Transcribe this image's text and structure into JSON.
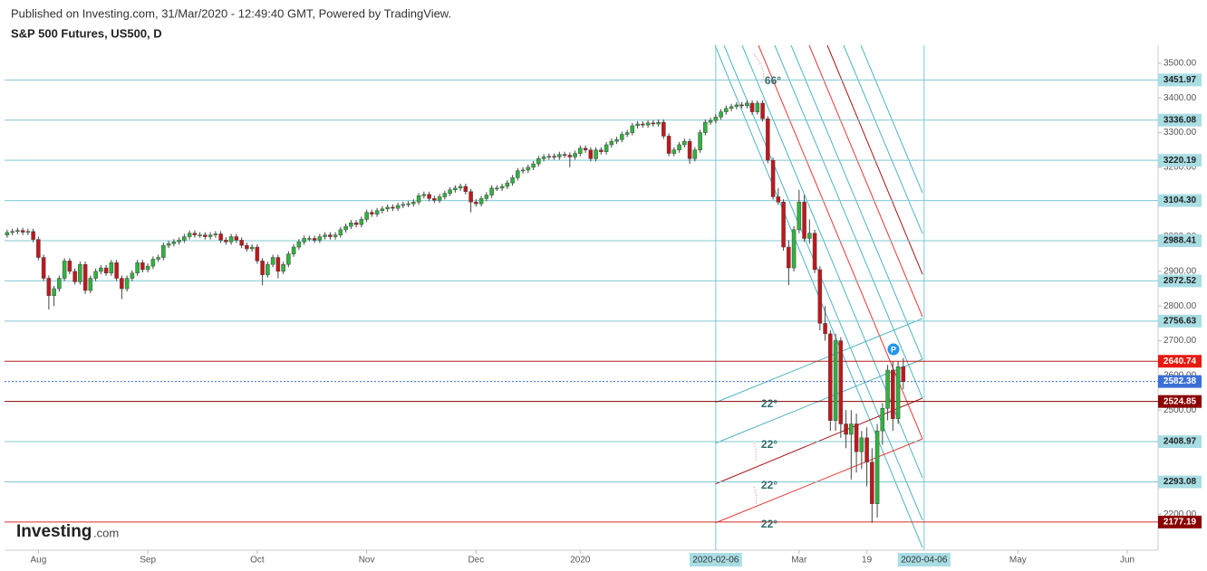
{
  "chart_data": {
    "type": "candlestick",
    "subtitle": "Published on Investing.com, 31/Mar/2020 - 12:49:40 GMT, Powered by TradingView.",
    "title": "S&P 500 Futures, US500, D",
    "logo": {
      "name": "Investing",
      "suffix": ".com"
    },
    "up_color": "#2fb43c",
    "down_color": "#c3161c",
    "candles": [
      [
        3005,
        3020,
        2997,
        3012
      ],
      [
        3012,
        3023,
        3004,
        3015
      ],
      [
        3015,
        3026,
        3007,
        3018
      ],
      [
        3018,
        3026,
        3005,
        3013
      ],
      [
        3013,
        3023,
        3005,
        3015
      ],
      [
        3015,
        3023,
        2984,
        2992
      ],
      [
        2992,
        3000,
        2932,
        2940
      ],
      [
        2940,
        2948,
        2872,
        2880
      ],
      [
        2880,
        2888,
        2790,
        2830
      ],
      [
        2830,
        2858,
        2800,
        2850
      ],
      [
        2850,
        2888,
        2842,
        2880
      ],
      [
        2880,
        2938,
        2872,
        2930
      ],
      [
        2930,
        2938,
        2892,
        2900
      ],
      [
        2900,
        2908,
        2862,
        2870
      ],
      [
        2870,
        2928,
        2862,
        2920
      ],
      [
        2920,
        2928,
        2835,
        2845
      ],
      [
        2845,
        2888,
        2837,
        2880
      ],
      [
        2880,
        2908,
        2872,
        2900
      ],
      [
        2900,
        2918,
        2892,
        2910
      ],
      [
        2910,
        2918,
        2887,
        2895
      ],
      [
        2895,
        2933,
        2887,
        2925
      ],
      [
        2925,
        2933,
        2872,
        2880
      ],
      [
        2880,
        2888,
        2820,
        2850
      ],
      [
        2850,
        2888,
        2842,
        2880
      ],
      [
        2880,
        2903,
        2872,
        2895
      ],
      [
        2895,
        2933,
        2887,
        2925
      ],
      [
        2925,
        2933,
        2897,
        2905
      ],
      [
        2905,
        2923,
        2897,
        2915
      ],
      [
        2915,
        2943,
        2907,
        2935
      ],
      [
        2935,
        2948,
        2927,
        2940
      ],
      [
        2940,
        2983,
        2932,
        2975
      ],
      [
        2975,
        2988,
        2967,
        2980
      ],
      [
        2980,
        2993,
        2972,
        2985
      ],
      [
        2985,
        2998,
        2977,
        2990
      ],
      [
        2990,
        3008,
        2982,
        3000
      ],
      [
        3000,
        3018,
        2992,
        3010
      ],
      [
        3010,
        3018,
        2997,
        3005
      ],
      [
        3005,
        3013,
        2997,
        3005
      ],
      [
        3005,
        3013,
        2992,
        3000
      ],
      [
        3000,
        3013,
        2992,
        3005
      ],
      [
        3005,
        3016,
        2997,
        3008
      ],
      [
        3008,
        3016,
        2982,
        2990
      ],
      [
        2990,
        2998,
        2977,
        2985
      ],
      [
        2985,
        3008,
        2977,
        3000
      ],
      [
        3000,
        3008,
        2982,
        2990
      ],
      [
        2990,
        2998,
        2967,
        2975
      ],
      [
        2975,
        2983,
        2957,
        2965
      ],
      [
        2965,
        2978,
        2957,
        2970
      ],
      [
        2970,
        2978,
        2922,
        2930
      ],
      [
        2930,
        2938,
        2860,
        2890
      ],
      [
        2890,
        2928,
        2882,
        2920
      ],
      [
        2920,
        2948,
        2912,
        2940
      ],
      [
        2940,
        2948,
        2880,
        2900
      ],
      [
        2900,
        2928,
        2892,
        2920
      ],
      [
        2920,
        2958,
        2912,
        2950
      ],
      [
        2950,
        2978,
        2942,
        2970
      ],
      [
        2970,
        2993,
        2962,
        2985
      ],
      [
        2985,
        3003,
        2977,
        2995
      ],
      [
        2995,
        3003,
        2987,
        2995
      ],
      [
        2995,
        3003,
        2982,
        2990
      ],
      [
        2990,
        3008,
        2982,
        3000
      ],
      [
        3000,
        3013,
        2992,
        3005
      ],
      [
        3005,
        3013,
        2992,
        3000
      ],
      [
        3000,
        3013,
        2992,
        3005
      ],
      [
        3005,
        3028,
        2997,
        3020
      ],
      [
        3020,
        3038,
        3012,
        3030
      ],
      [
        3030,
        3048,
        3022,
        3040
      ],
      [
        3040,
        3048,
        3027,
        3035
      ],
      [
        3035,
        3058,
        3027,
        3050
      ],
      [
        3050,
        3078,
        3042,
        3070
      ],
      [
        3070,
        3078,
        3057,
        3065
      ],
      [
        3065,
        3083,
        3057,
        3075
      ],
      [
        3075,
        3088,
        3067,
        3080
      ],
      [
        3080,
        3093,
        3072,
        3085
      ],
      [
        3085,
        3093,
        3074,
        3082
      ],
      [
        3082,
        3098,
        3074,
        3090
      ],
      [
        3090,
        3101,
        3082,
        3093
      ],
      [
        3093,
        3103,
        3085,
        3095
      ],
      [
        3095,
        3108,
        3087,
        3100
      ],
      [
        3100,
        3126,
        3092,
        3118
      ],
      [
        3118,
        3130,
        3110,
        3122
      ],
      [
        3122,
        3130,
        3102,
        3110
      ],
      [
        3110,
        3118,
        3097,
        3105
      ],
      [
        3105,
        3123,
        3097,
        3115
      ],
      [
        3115,
        3133,
        3107,
        3125
      ],
      [
        3125,
        3143,
        3117,
        3135
      ],
      [
        3135,
        3148,
        3127,
        3140
      ],
      [
        3140,
        3153,
        3132,
        3145
      ],
      [
        3145,
        3153,
        3122,
        3130
      ],
      [
        3130,
        3138,
        3070,
        3100
      ],
      [
        3100,
        3108,
        3087,
        3095
      ],
      [
        3095,
        3118,
        3087,
        3110
      ],
      [
        3110,
        3128,
        3102,
        3120
      ],
      [
        3120,
        3148,
        3112,
        3140
      ],
      [
        3140,
        3148,
        3132,
        3140
      ],
      [
        3140,
        3153,
        3132,
        3145
      ],
      [
        3145,
        3163,
        3137,
        3155
      ],
      [
        3155,
        3178,
        3147,
        3170
      ],
      [
        3170,
        3198,
        3162,
        3190
      ],
      [
        3190,
        3200,
        3182,
        3192
      ],
      [
        3192,
        3208,
        3184,
        3200
      ],
      [
        3200,
        3218,
        3192,
        3210
      ],
      [
        3210,
        3233,
        3202,
        3225
      ],
      [
        3225,
        3238,
        3217,
        3230
      ],
      [
        3230,
        3240,
        3222,
        3232
      ],
      [
        3232,
        3240,
        3222,
        3230
      ],
      [
        3230,
        3245,
        3222,
        3237
      ],
      [
        3237,
        3245,
        3227,
        3235
      ],
      [
        3235,
        3243,
        3200,
        3230
      ],
      [
        3230,
        3248,
        3222,
        3240
      ],
      [
        3240,
        3263,
        3232,
        3255
      ],
      [
        3255,
        3263,
        3242,
        3250
      ],
      [
        3250,
        3258,
        3217,
        3225
      ],
      [
        3225,
        3258,
        3217,
        3250
      ],
      [
        3250,
        3258,
        3237,
        3245
      ],
      [
        3245,
        3273,
        3237,
        3265
      ],
      [
        3265,
        3283,
        3257,
        3275
      ],
      [
        3275,
        3288,
        3267,
        3280
      ],
      [
        3280,
        3303,
        3272,
        3295
      ],
      [
        3295,
        3308,
        3287,
        3300
      ],
      [
        3300,
        3328,
        3292,
        3320
      ],
      [
        3320,
        3333,
        3312,
        3325
      ],
      [
        3325,
        3333,
        3314,
        3322
      ],
      [
        3322,
        3336,
        3314,
        3328
      ],
      [
        3328,
        3336,
        3317,
        3325
      ],
      [
        3325,
        3338,
        3317,
        3330
      ],
      [
        3330,
        3338,
        3282,
        3290
      ],
      [
        3290,
        3298,
        3232,
        3240
      ],
      [
        3240,
        3258,
        3232,
        3250
      ],
      [
        3250,
        3273,
        3242,
        3265
      ],
      [
        3265,
        3283,
        3257,
        3275
      ],
      [
        3275,
        3283,
        3210,
        3225
      ],
      [
        3225,
        3258,
        3217,
        3250
      ],
      [
        3250,
        3308,
        3242,
        3300
      ],
      [
        3300,
        3338,
        3292,
        3330
      ],
      [
        3330,
        3343,
        3322,
        3335
      ],
      [
        3335,
        3353,
        3327,
        3345
      ],
      [
        3345,
        3368,
        3337,
        3360
      ],
      [
        3360,
        3378,
        3352,
        3370
      ],
      [
        3370,
        3383,
        3362,
        3375
      ],
      [
        3375,
        3388,
        3367,
        3380
      ],
      [
        3380,
        3388,
        3370,
        3378
      ],
      [
        3378,
        3393,
        3370,
        3385
      ],
      [
        3385,
        3393,
        3352,
        3360
      ],
      [
        3360,
        3393,
        3352,
        3385
      ],
      [
        3385,
        3393,
        3332,
        3340
      ],
      [
        3340,
        3348,
        3212,
        3220
      ],
      [
        3220,
        3228,
        3107,
        3115
      ],
      [
        3115,
        3140,
        3092,
        3100
      ],
      [
        3100,
        3108,
        2960,
        2970
      ],
      [
        2970,
        2990,
        2860,
        2910
      ],
      [
        2910,
        3030,
        2900,
        3020
      ],
      [
        3020,
        3135,
        3010,
        3100
      ],
      [
        3100,
        3120,
        2985,
        2995
      ],
      [
        2995,
        3050,
        2980,
        3010
      ],
      [
        3010,
        3020,
        2895,
        2905
      ],
      [
        2905,
        2915,
        2730,
        2750
      ],
      [
        2750,
        2800,
        2700,
        2720
      ],
      [
        2720,
        2730,
        2440,
        2470
      ],
      [
        2470,
        2720,
        2440,
        2700
      ],
      [
        2700,
        2710,
        2420,
        2460
      ],
      [
        2460,
        2500,
        2390,
        2430
      ],
      [
        2430,
        2500,
        2300,
        2460
      ],
      [
        2460,
        2490,
        2320,
        2380
      ],
      [
        2380,
        2440,
        2330,
        2420
      ],
      [
        2420,
        2450,
        2280,
        2350
      ],
      [
        2350,
        2390,
        2175,
        2230
      ],
      [
        2230,
        2460,
        2190,
        2440
      ],
      [
        2440,
        2520,
        2400,
        2505
      ],
      [
        2505,
        2630,
        2470,
        2615
      ],
      [
        2615,
        2640,
        2440,
        2475
      ],
      [
        2475,
        2640,
        2460,
        2625
      ],
      [
        2625,
        2650,
        2560,
        2582
      ]
    ],
    "ylim": [
      2096,
      3552
    ],
    "yticks": [
      {
        "value": 2200,
        "label": "2200.00"
      },
      {
        "value": 2300,
        "label": "2300.00"
      },
      {
        "value": 2400,
        "label": "2400.00"
      },
      {
        "value": 2500,
        "label": "2500.00"
      },
      {
        "value": 2600,
        "label": "2600.00"
      },
      {
        "value": 2700,
        "label": "2700.00"
      },
      {
        "value": 2800,
        "label": "2800.00"
      },
      {
        "value": 2900,
        "label": "2900.00"
      },
      {
        "value": 3000,
        "label": "3000.00"
      },
      {
        "value": 3100,
        "label": "3100.00"
      },
      {
        "value": 3200,
        "label": "3200.00"
      },
      {
        "value": 3300,
        "label": "3300.00"
      },
      {
        "value": 3400,
        "label": "3400.00"
      },
      {
        "value": 3500,
        "label": "3500.00"
      }
    ],
    "xlim": [
      -0.5,
      220.9
    ],
    "xticks": [
      {
        "value": 6,
        "label": "Aug"
      },
      {
        "value": 27,
        "label": "Sep"
      },
      {
        "value": 48,
        "label": "Oct"
      },
      {
        "value": 69,
        "label": "Nov"
      },
      {
        "value": 90,
        "label": "Dec"
      },
      {
        "value": 110,
        "label": "2020"
      },
      {
        "value": 152,
        "label": "Mar"
      },
      {
        "value": 165,
        "label": "19"
      },
      {
        "value": 194,
        "label": "May"
      },
      {
        "value": 215,
        "label": "Jun"
      }
    ],
    "x_markers": [
      {
        "value": 136,
        "label": "2020-02-06"
      },
      {
        "value": 176,
        "label": "2020-04-06"
      }
    ],
    "grid": false,
    "price_lines": [
      {
        "value": 3451.97,
        "color": "#7fc8d2"
      },
      {
        "value": 3336.08,
        "color": "#7fc8d2"
      },
      {
        "value": 3220.19,
        "color": "#7fc8d2"
      },
      {
        "value": 3104.3,
        "label": "3104.30",
        "color": "#7fc8d2"
      },
      {
        "value": 2988.41,
        "color": "#7fc8d2"
      },
      {
        "value": 2872.52,
        "color": "#7fc8d2"
      },
      {
        "value": 2756.63,
        "color": "#7fc8d2"
      },
      {
        "value": 2640.74,
        "color": "#b71c1c"
      },
      {
        "value": 2582.38,
        "color": "#3b6fd8",
        "style": "dotted"
      },
      {
        "value": 2524.85,
        "color": "#8b0000"
      },
      {
        "value": 2408.97,
        "color": "#7fc8d2"
      },
      {
        "value": 2293.08,
        "color": "#7fc8d2"
      },
      {
        "value": 2177.19,
        "color": "#d32f2f"
      }
    ],
    "label_colors": {
      "#7fc8d2": "#a9dde4",
      "#b71c1c": "#e8190f",
      "#3b6fd8": "#3b6fd8",
      "#8b0000": "#8b0000",
      "#d32f2f": "#8b0000"
    },
    "annotations": [
      "66°",
      "22°",
      "22°",
      "22°",
      "22°"
    ],
    "pivot": "P"
  }
}
